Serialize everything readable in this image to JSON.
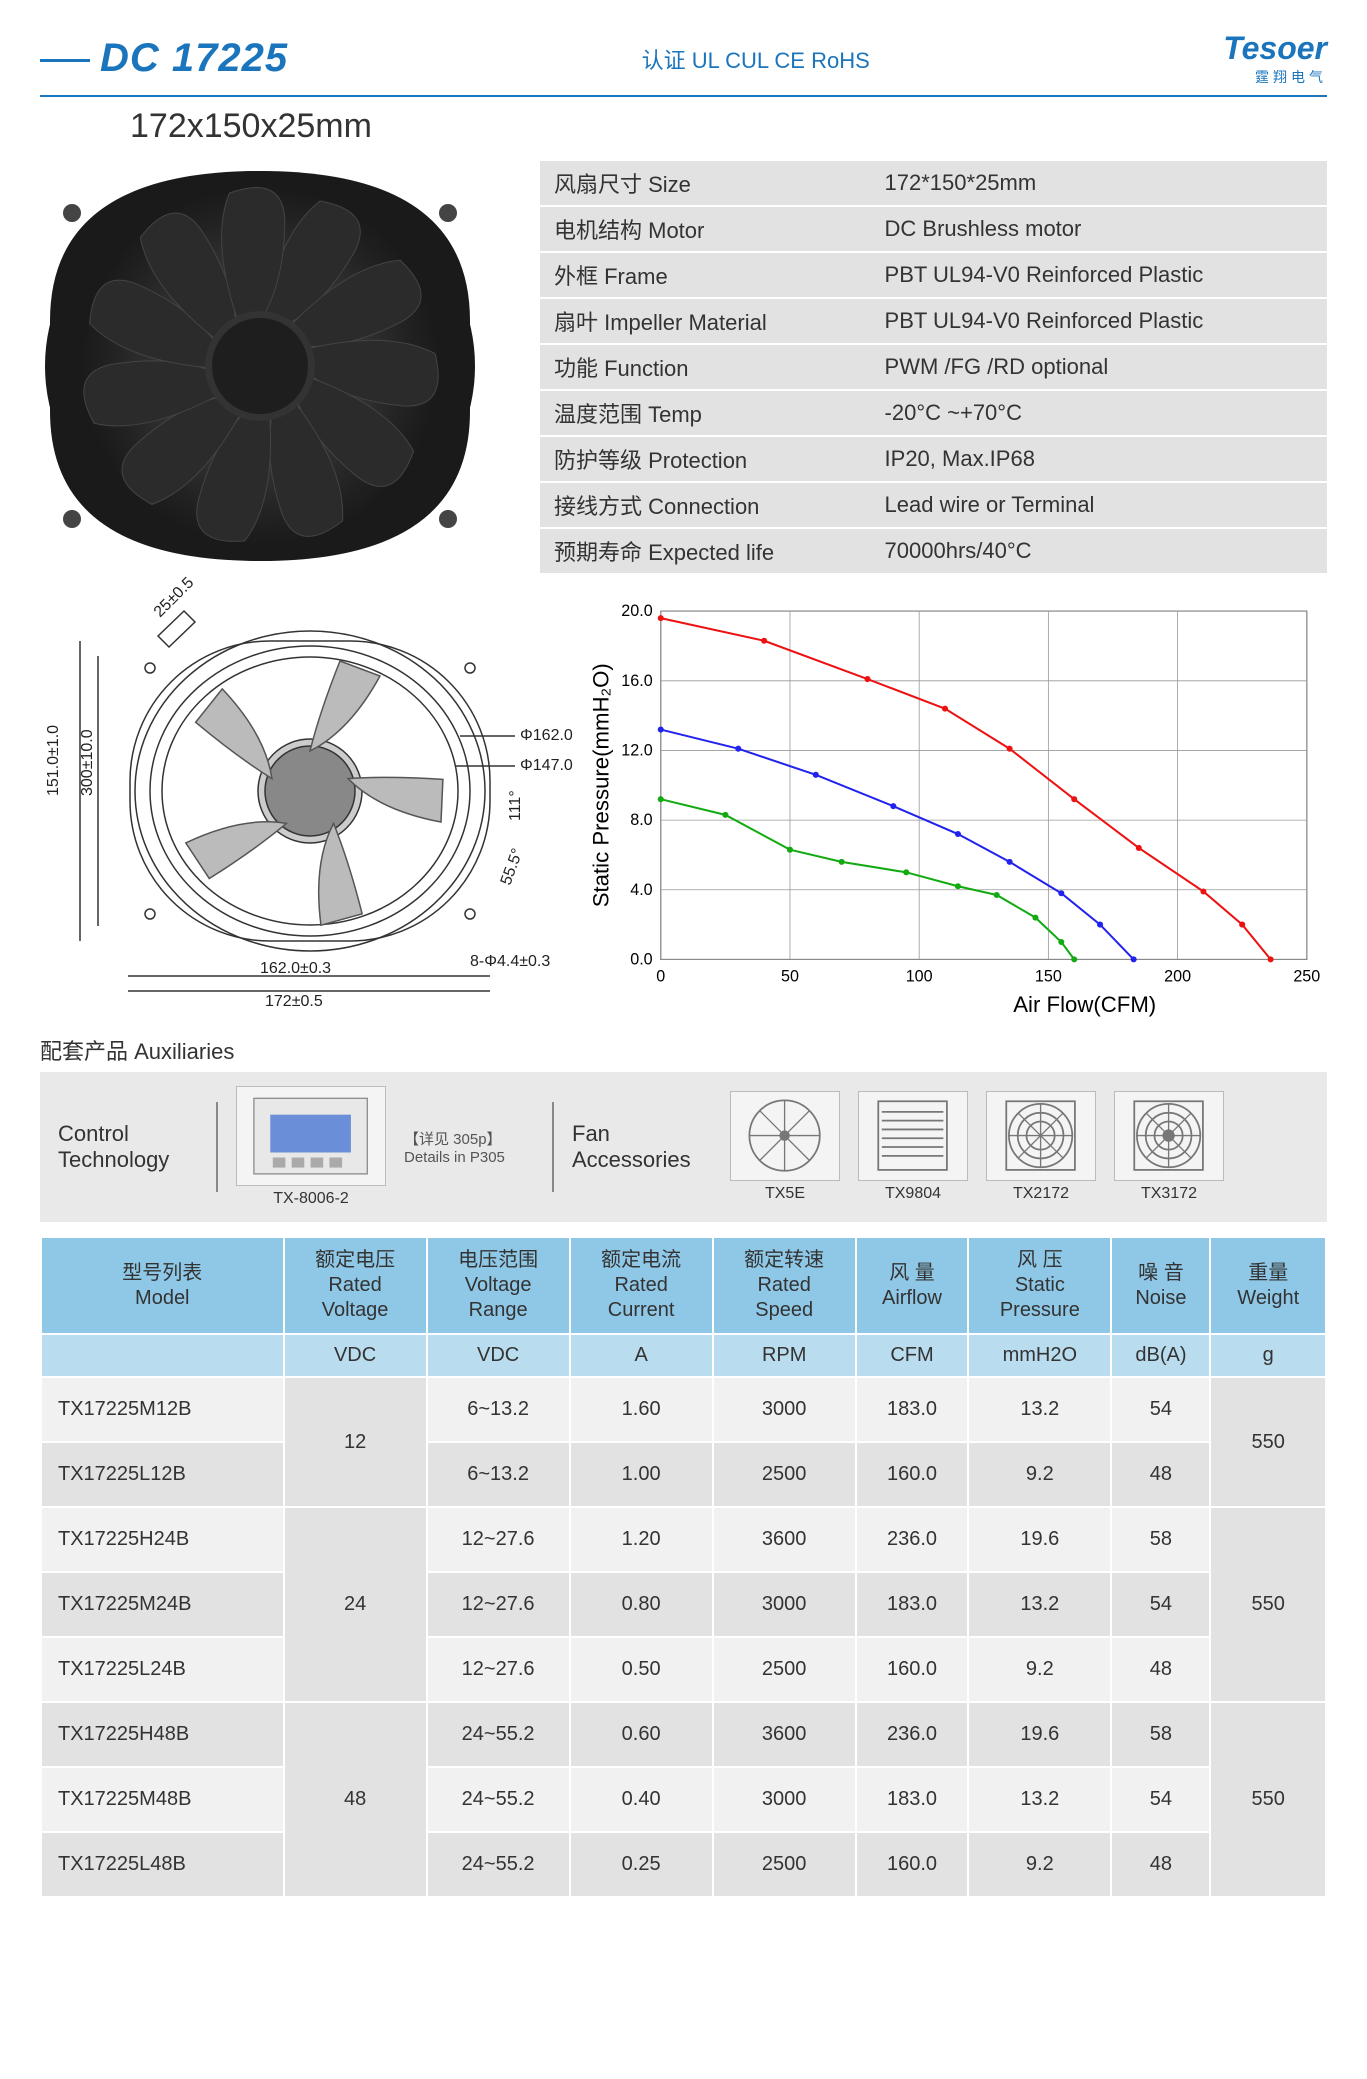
{
  "header": {
    "model": "DC 17225",
    "cert": "认证 UL  CUL  CE  RoHS",
    "logo_main": "Tesoer",
    "logo_sub": "霆翔电气",
    "dims": "172x150x25mm"
  },
  "specs": [
    {
      "k": "风扇尺寸 Size",
      "v": "172*150*25mm"
    },
    {
      "k": "电机结构 Motor",
      "v": "DC Brushless motor"
    },
    {
      "k": "外框 Frame",
      "v": "PBT UL94-V0 Reinforced Plastic"
    },
    {
      "k": "扇叶 Impeller Material",
      "v": "PBT UL94-V0 Reinforced Plastic"
    },
    {
      "k": "功能 Function",
      "v": "PWM /FG /RD optional"
    },
    {
      "k": "温度范围  Temp",
      "v": "-20°C ~+70°C"
    },
    {
      "k": "防护等级  Protection",
      "v": "IP20, Max.IP68"
    },
    {
      "k": "接线方式 Connection",
      "v": "Lead wire or Terminal"
    },
    {
      "k": "预期寿命 Expected life",
      "v": "70000hrs/40°C"
    }
  ],
  "drawing": {
    "d_outer": "Φ162.0",
    "d_inner": "Φ147.0",
    "h_151": "151.0±1.0",
    "h_300": "300±10.0",
    "depth": "25±0.5",
    "w_162": "162.0±0.3",
    "w_172": "172±0.5",
    "hole": "8-Φ4.4±0.3",
    "a1": "55.5°",
    "a2": "111°"
  },
  "chart": {
    "ylabel": "Static Pressure(mmH₂O)",
    "xlabel": "Air Flow(CFM)",
    "xlim": [
      0,
      250
    ],
    "xtick": 50,
    "ylim": [
      0,
      20
    ],
    "ytick": 4,
    "label_fontsize": 22,
    "tick_fontsize": 16,
    "grid_color": "#999",
    "bg": "#ffffff",
    "line_width": 2,
    "marker_size": 3,
    "series": [
      {
        "color": "#e11",
        "points": [
          [
            0,
            19.6
          ],
          [
            40,
            18.3
          ],
          [
            80,
            16.1
          ],
          [
            110,
            14.4
          ],
          [
            135,
            12.1
          ],
          [
            160,
            9.2
          ],
          [
            185,
            6.4
          ],
          [
            210,
            3.9
          ],
          [
            225,
            2.0
          ],
          [
            236,
            0
          ]
        ]
      },
      {
        "color": "#22e",
        "points": [
          [
            0,
            13.2
          ],
          [
            30,
            12.1
          ],
          [
            60,
            10.6
          ],
          [
            90,
            8.8
          ],
          [
            115,
            7.2
          ],
          [
            135,
            5.6
          ],
          [
            155,
            3.8
          ],
          [
            170,
            2.0
          ],
          [
            183,
            0
          ]
        ]
      },
      {
        "color": "#1a1",
        "points": [
          [
            0,
            9.2
          ],
          [
            25,
            8.3
          ],
          [
            50,
            6.3
          ],
          [
            70,
            5.6
          ],
          [
            95,
            5.0
          ],
          [
            115,
            4.2
          ],
          [
            130,
            3.7
          ],
          [
            145,
            2.4
          ],
          [
            155,
            1.0
          ],
          [
            160,
            0
          ]
        ]
      }
    ]
  },
  "aux": {
    "section": "配套产品 Auxiliaries",
    "ctrl_label": "Control\nTechnology",
    "ctrl_model": "TX-8006-2",
    "ctrl_note": "【详见 305p】\nDetails in P305",
    "acc_label": "Fan\nAccessories",
    "items": [
      "TX5E",
      "TX9804",
      "TX2172",
      "TX3172"
    ]
  },
  "table": {
    "headers": [
      "型号列表\nModel",
      "额定电压\nRated\nVoltage",
      "电压范围\nVoltage\nRange",
      "额定电流\nRated\nCurrent",
      "额定转速\nRated\nSpeed",
      "风 量\nAirflow",
      "风 压\nStatic\nPressure",
      "噪 音\nNoise",
      "重量\nWeight"
    ],
    "units": [
      "",
      "VDC",
      "VDC",
      "A",
      "RPM",
      "CFM",
      "mmH2O",
      "dB(A)",
      "g"
    ],
    "rows": [
      {
        "model": "TX17225M12B",
        "volt": "12",
        "volt_span": 2,
        "range": "6~13.2",
        "cur": "1.60",
        "rpm": "3000",
        "cfm": "183.0",
        "sp": "13.2",
        "db": "54",
        "wt": "550",
        "wt_span": 2
      },
      {
        "model": "TX17225L12B",
        "range": "6~13.2",
        "cur": "1.00",
        "rpm": "2500",
        "cfm": "160.0",
        "sp": "9.2",
        "db": "48"
      },
      {
        "model": "TX17225H24B",
        "volt": "24",
        "volt_span": 3,
        "range": "12~27.6",
        "cur": "1.20",
        "rpm": "3600",
        "cfm": "236.0",
        "sp": "19.6",
        "db": "58",
        "wt": "550",
        "wt_span": 3
      },
      {
        "model": "TX17225M24B",
        "range": "12~27.6",
        "cur": "0.80",
        "rpm": "3000",
        "cfm": "183.0",
        "sp": "13.2",
        "db": "54"
      },
      {
        "model": "TX17225L24B",
        "range": "12~27.6",
        "cur": "0.50",
        "rpm": "2500",
        "cfm": "160.0",
        "sp": "9.2",
        "db": "48"
      },
      {
        "model": "TX17225H48B",
        "volt": "48",
        "volt_span": 3,
        "range": "24~55.2",
        "cur": "0.60",
        "rpm": "3600",
        "cfm": "236.0",
        "sp": "19.6",
        "db": "58",
        "wt": "550",
        "wt_span": 3
      },
      {
        "model": "TX17225M48B",
        "range": "24~55.2",
        "cur": "0.40",
        "rpm": "3000",
        "cfm": "183.0",
        "sp": "13.2",
        "db": "54"
      },
      {
        "model": "TX17225L48B",
        "range": "24~55.2",
        "cur": "0.25",
        "rpm": "2500",
        "cfm": "160.0",
        "sp": "9.2",
        "db": "48"
      }
    ]
  }
}
